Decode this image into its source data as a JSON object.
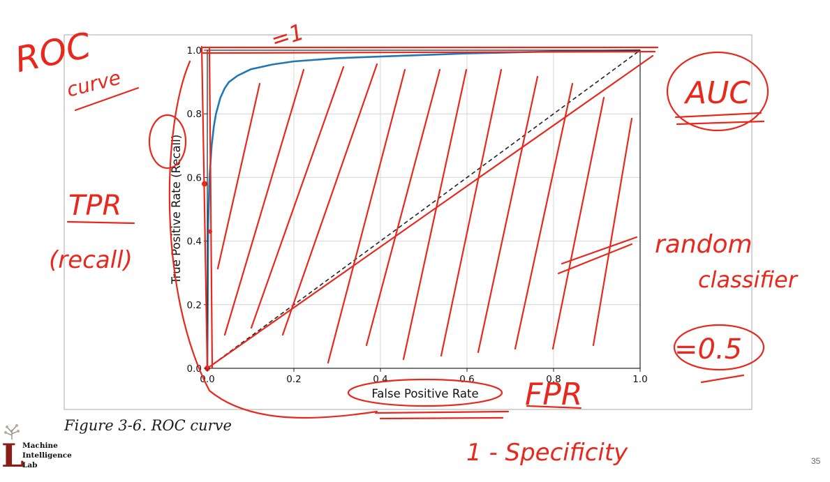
{
  "chart_data": {
    "type": "line",
    "title": "",
    "xlabel": "False Positive Rate",
    "ylabel": "True Positive Rate (Recall)",
    "xlim": [
      0.0,
      1.0
    ],
    "ylim": [
      0.0,
      1.0
    ],
    "xticks": [
      "0.0",
      "0.2",
      "0.4",
      "0.6",
      "0.8",
      "1.0"
    ],
    "yticks": [
      "0.0",
      "0.2",
      "0.4",
      "0.6",
      "0.8",
      "1.0"
    ],
    "grid": true,
    "series": [
      {
        "color": "#1f77b4",
        "style": "solid",
        "x": [
          0.0,
          0.002,
          0.005,
          0.01,
          0.015,
          0.02,
          0.03,
          0.04,
          0.05,
          0.07,
          0.1,
          0.15,
          0.2,
          0.3,
          0.4,
          0.5,
          0.6,
          0.7,
          0.8,
          0.9,
          1.0
        ],
        "y": [
          0.0,
          0.45,
          0.6,
          0.7,
          0.76,
          0.8,
          0.85,
          0.88,
          0.9,
          0.92,
          0.94,
          0.955,
          0.965,
          0.975,
          0.98,
          0.985,
          0.99,
          0.993,
          0.996,
          0.998,
          1.0
        ]
      },
      {
        "color": "#222222",
        "style": "dashed",
        "x": [
          0.0,
          1.0
        ],
        "y": [
          0.0,
          1.0
        ]
      }
    ]
  },
  "caption": "Figure 3-6. ROC curve",
  "annotations": {
    "roc": "ROC",
    "curve": "curve",
    "equals_one": "=1",
    "tpr": "TPR",
    "recall_paren": "(recall)",
    "auc": "AUC",
    "random": "random",
    "classifier": "classifier",
    "half": "=0.5",
    "fpr": "FPR",
    "one_minus_spec": "1 - Specificity",
    "ink_color": "#e8281c"
  },
  "logo": {
    "mark": "L",
    "line1": "Machine",
    "line2": "Intelligence",
    "line3": "Lab",
    "color": "#8a1e16"
  },
  "page_number": "35"
}
